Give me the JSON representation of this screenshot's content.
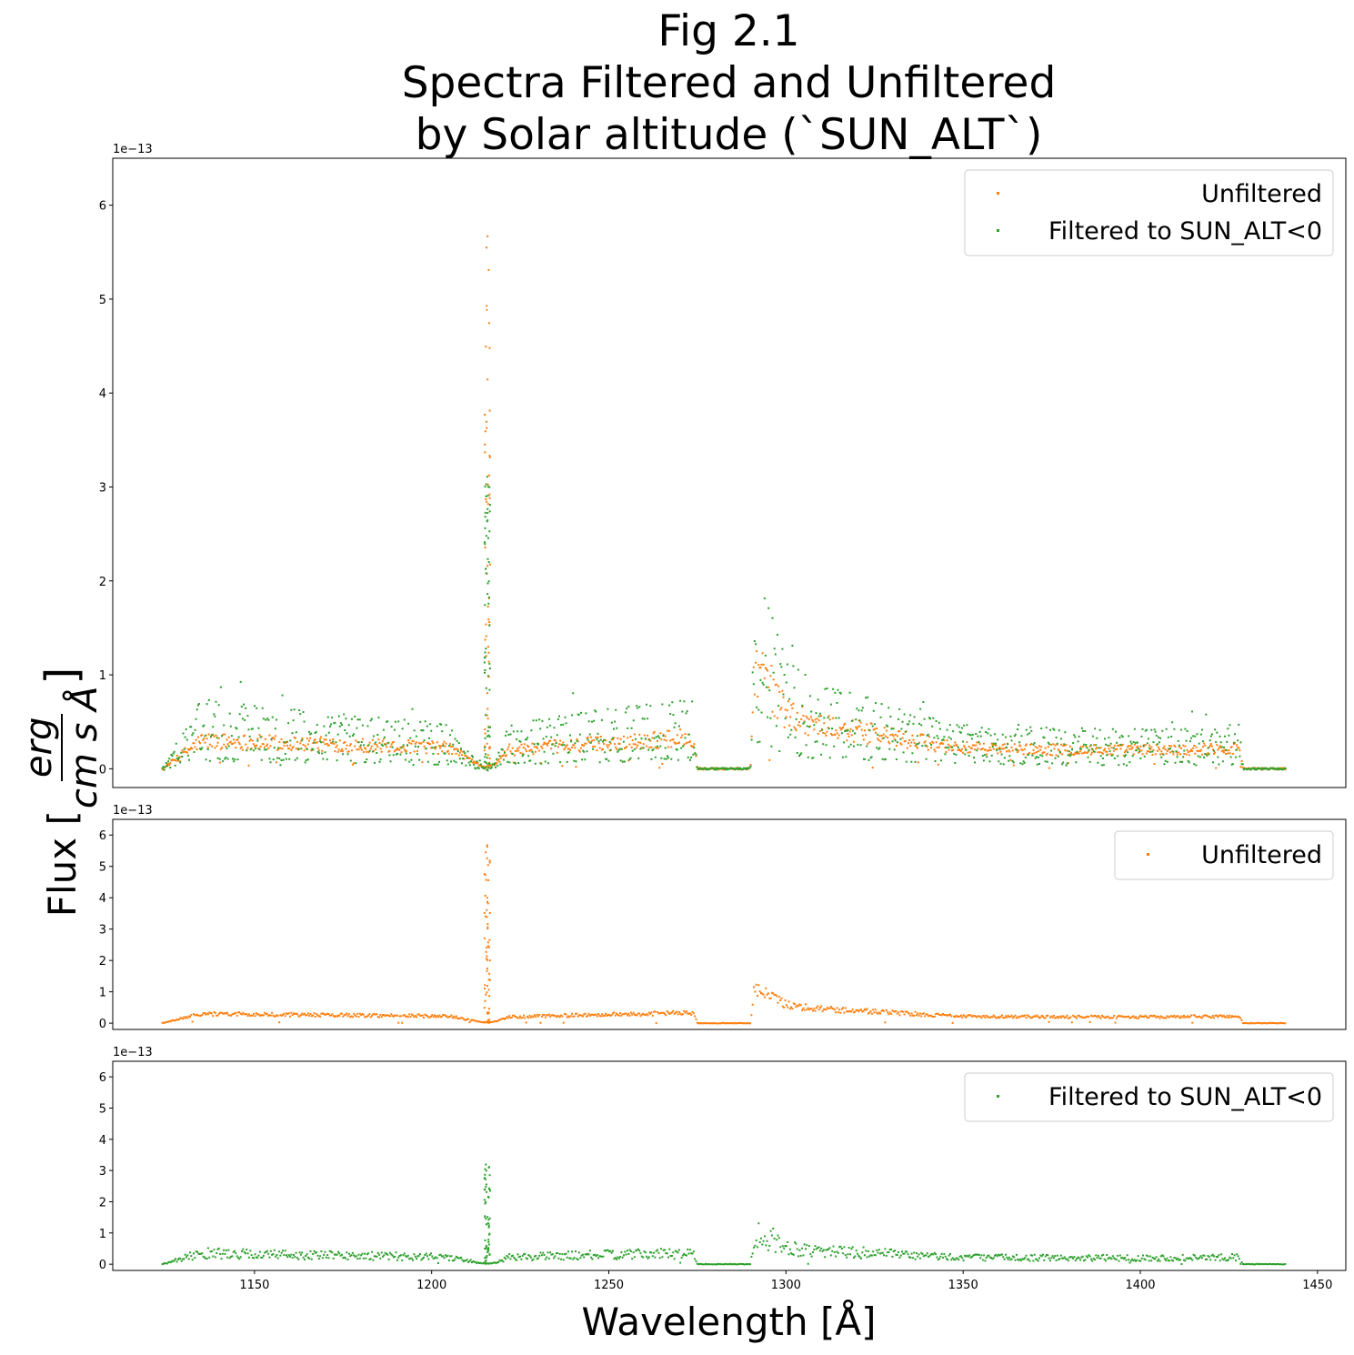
{
  "title_lines": [
    "Fig 2.1",
    "Spectra Filtered and Unfiltered",
    "by Solar altitude (`SUN_ALT`)"
  ],
  "ylabel": {
    "prefix": "Flux [",
    "numerator": "erg",
    "denominator": "cm s Å",
    "suffix": "]"
  },
  "xlabel": "Wavelength [Å]",
  "colors": {
    "unfiltered": "#ff7f0e",
    "filtered": "#2ca02c"
  },
  "chart_data": [
    {
      "type": "scatter",
      "panel": "top",
      "xlim": [
        1110,
        1458
      ],
      "ylim": [
        -0.2,
        6.5
      ],
      "y_multiplier_label": "1e−13",
      "yticks": [
        0,
        1,
        2,
        3,
        4,
        5,
        6
      ],
      "xticks_visible": false,
      "legend": {
        "placement": "top-right",
        "entries": [
          "Unfiltered",
          "Filtered to SUN_ALT<0"
        ]
      },
      "series": [
        {
          "name": "Unfiltered",
          "color": "#ff7f0e",
          "marker": "dot",
          "profile_x": [
            1124,
            1135,
            1150,
            1170,
            1190,
            1205,
            1210,
            1214,
            1215.7,
            1218,
            1222,
            1240,
            1260,
            1274,
            1275,
            1290,
            1291,
            1295,
            1300,
            1310,
            1320,
            1335,
            1350,
            1380,
            1410,
            1428,
            1429,
            1441
          ],
          "profile_y": [
            0,
            0.3,
            0.28,
            0.26,
            0.24,
            0.22,
            0.12,
            0.03,
            0.02,
            0.05,
            0.2,
            0.25,
            0.3,
            0.33,
            0,
            0,
            1.1,
            0.9,
            0.6,
            0.45,
            0.4,
            0.3,
            0.22,
            0.2,
            0.2,
            0.22,
            0,
            0
          ],
          "peak_x": 1215.7,
          "peak_max": 5.85
        },
        {
          "name": "Filtered to SUN_ALT<0",
          "color": "#2ca02c",
          "marker": "dot",
          "profile_x": [
            1124,
            1135,
            1150,
            1170,
            1190,
            1205,
            1210,
            1214,
            1215.7,
            1218,
            1222,
            1240,
            1260,
            1274,
            1275,
            1290,
            1291,
            1295,
            1300,
            1310,
            1320,
            1335,
            1350,
            1380,
            1410,
            1428,
            1429,
            1441
          ],
          "profile_y": [
            0,
            0.35,
            0.32,
            0.28,
            0.25,
            0.22,
            0.12,
            0.03,
            0.02,
            0.05,
            0.22,
            0.28,
            0.32,
            0.36,
            0,
            0,
            1.0,
            0.85,
            0.55,
            0.42,
            0.38,
            0.28,
            0.22,
            0.2,
            0.2,
            0.22,
            0,
            0
          ],
          "peak_x": 1215.7,
          "peak_max": 3.25
        }
      ]
    },
    {
      "type": "scatter",
      "panel": "middle",
      "xlim": [
        1110,
        1458
      ],
      "ylim": [
        -0.2,
        6.5
      ],
      "y_multiplier_label": "1e−13",
      "yticks": [
        0,
        1,
        2,
        3,
        4,
        5,
        6
      ],
      "xticks_visible": false,
      "legend": {
        "placement": "top-right",
        "entries": [
          "Unfiltered"
        ]
      },
      "series": [
        {
          "name": "Unfiltered",
          "color": "#ff7f0e",
          "marker": "dot",
          "profile_x": [
            1124,
            1135,
            1150,
            1170,
            1190,
            1205,
            1210,
            1214,
            1215.7,
            1218,
            1222,
            1240,
            1260,
            1274,
            1275,
            1290,
            1291,
            1295,
            1300,
            1310,
            1320,
            1335,
            1350,
            1380,
            1410,
            1428,
            1429,
            1441
          ],
          "profile_y": [
            0,
            0.3,
            0.28,
            0.26,
            0.24,
            0.22,
            0.12,
            0.03,
            0.02,
            0.05,
            0.2,
            0.25,
            0.3,
            0.33,
            0,
            0,
            1.1,
            0.9,
            0.6,
            0.45,
            0.4,
            0.3,
            0.22,
            0.2,
            0.2,
            0.22,
            0,
            0
          ],
          "peak_x": 1215.7,
          "peak_max": 5.85
        }
      ]
    },
    {
      "type": "scatter",
      "panel": "bottom",
      "xlim": [
        1110,
        1458
      ],
      "ylim": [
        -0.2,
        6.5
      ],
      "y_multiplier_label": "1e−13",
      "yticks": [
        0,
        1,
        2,
        3,
        4,
        5,
        6
      ],
      "xticks": [
        1150,
        1200,
        1250,
        1300,
        1350,
        1400,
        1450
      ],
      "xticks_visible": true,
      "legend": {
        "placement": "top-right",
        "entries": [
          "Filtered to SUN_ALT<0"
        ]
      },
      "series": [
        {
          "name": "Filtered to SUN_ALT<0",
          "color": "#2ca02c",
          "marker": "dot",
          "profile_x": [
            1124,
            1135,
            1150,
            1170,
            1190,
            1205,
            1210,
            1214,
            1215.7,
            1218,
            1222,
            1240,
            1260,
            1274,
            1275,
            1290,
            1291,
            1295,
            1300,
            1310,
            1320,
            1335,
            1350,
            1380,
            1410,
            1428,
            1429,
            1441
          ],
          "profile_y": [
            0,
            0.35,
            0.32,
            0.28,
            0.25,
            0.22,
            0.12,
            0.03,
            0.02,
            0.05,
            0.22,
            0.28,
            0.32,
            0.36,
            0,
            0,
            1.0,
            0.85,
            0.55,
            0.42,
            0.38,
            0.28,
            0.22,
            0.2,
            0.2,
            0.22,
            0,
            0
          ],
          "peak_x": 1215.7,
          "peak_max": 3.25
        }
      ]
    }
  ]
}
